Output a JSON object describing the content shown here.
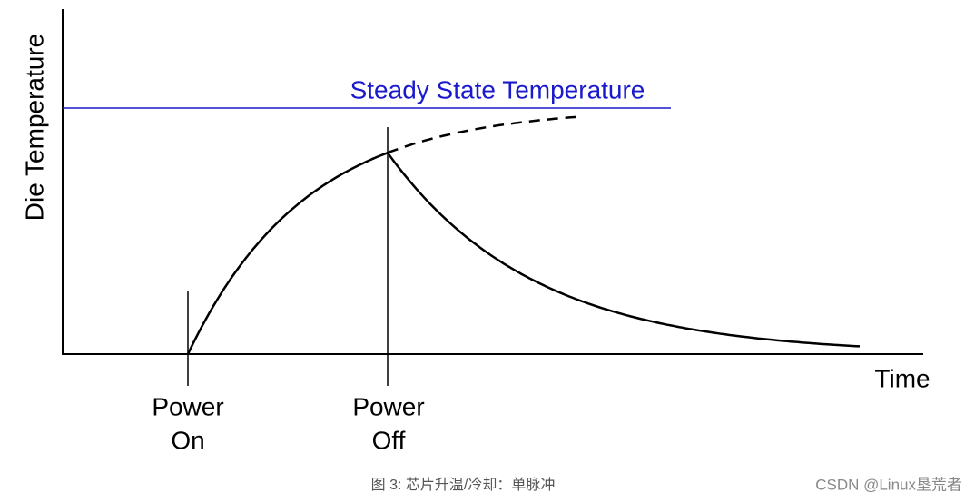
{
  "diagram": {
    "y_axis_label": "Die Temperature",
    "x_axis_label": "Time",
    "steady_state_label": "Steady State Temperature",
    "markers": [
      {
        "line1": "Power",
        "line2": "On"
      },
      {
        "line1": "Power",
        "line2": "Off"
      }
    ]
  },
  "caption": "图 3: 芯片升温/冷却：单脉冲",
  "watermark": "CSDN @Linux垦荒者"
}
